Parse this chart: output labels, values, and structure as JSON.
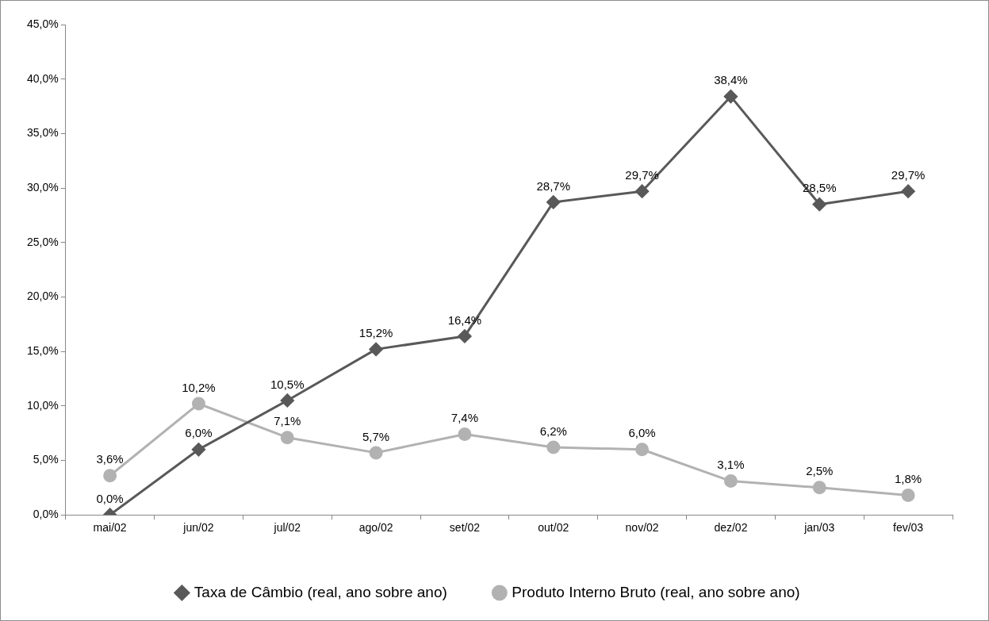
{
  "chart_data": {
    "type": "line",
    "categories": [
      "mai/02",
      "jun/02",
      "jul/02",
      "ago/02",
      "set/02",
      "out/02",
      "nov/02",
      "dez/02",
      "jan/03",
      "fev/03"
    ],
    "series": [
      {
        "name": "Taxa de Câmbio (real, ano sobre ano)",
        "color": "#595959",
        "marker": "diamond",
        "values": [
          0.0,
          6.0,
          10.5,
          15.2,
          16.4,
          28.7,
          29.7,
          38.4,
          28.5,
          29.7
        ],
        "value_labels": [
          "0,0%",
          "6,0%",
          "10,5%",
          "15,2%",
          "16,4%",
          "28,7%",
          "29,7%",
          "38,4%",
          "28,5%",
          "29,7%"
        ]
      },
      {
        "name": "Produto Interno Bruto (real, ano sobre ano)",
        "color": "#b2b2b2",
        "marker": "circle",
        "values": [
          3.6,
          10.2,
          7.1,
          5.7,
          7.4,
          6.2,
          6.0,
          3.1,
          2.5,
          1.8
        ],
        "value_labels": [
          "3,6%",
          "10,2%",
          "7,1%",
          "5,7%",
          "7,4%",
          "6,2%",
          "6,0%",
          "3,1%",
          "2,5%",
          "1,8%"
        ]
      }
    ],
    "ylim": [
      0,
      45
    ],
    "yticks": [
      {
        "value": 0,
        "label": "0,0%"
      },
      {
        "value": 5,
        "label": "5,0%"
      },
      {
        "value": 10,
        "label": "10,0%"
      },
      {
        "value": 15,
        "label": "15,0%"
      },
      {
        "value": 20,
        "label": "20,0%"
      },
      {
        "value": 25,
        "label": "25,0%"
      },
      {
        "value": 30,
        "label": "30,0%"
      },
      {
        "value": 35,
        "label": "35,0%"
      },
      {
        "value": 40,
        "label": "40,0%"
      },
      {
        "value": 45,
        "label": "45,0%"
      }
    ],
    "grid": false,
    "legend": "bottom",
    "line_style": "solid"
  }
}
